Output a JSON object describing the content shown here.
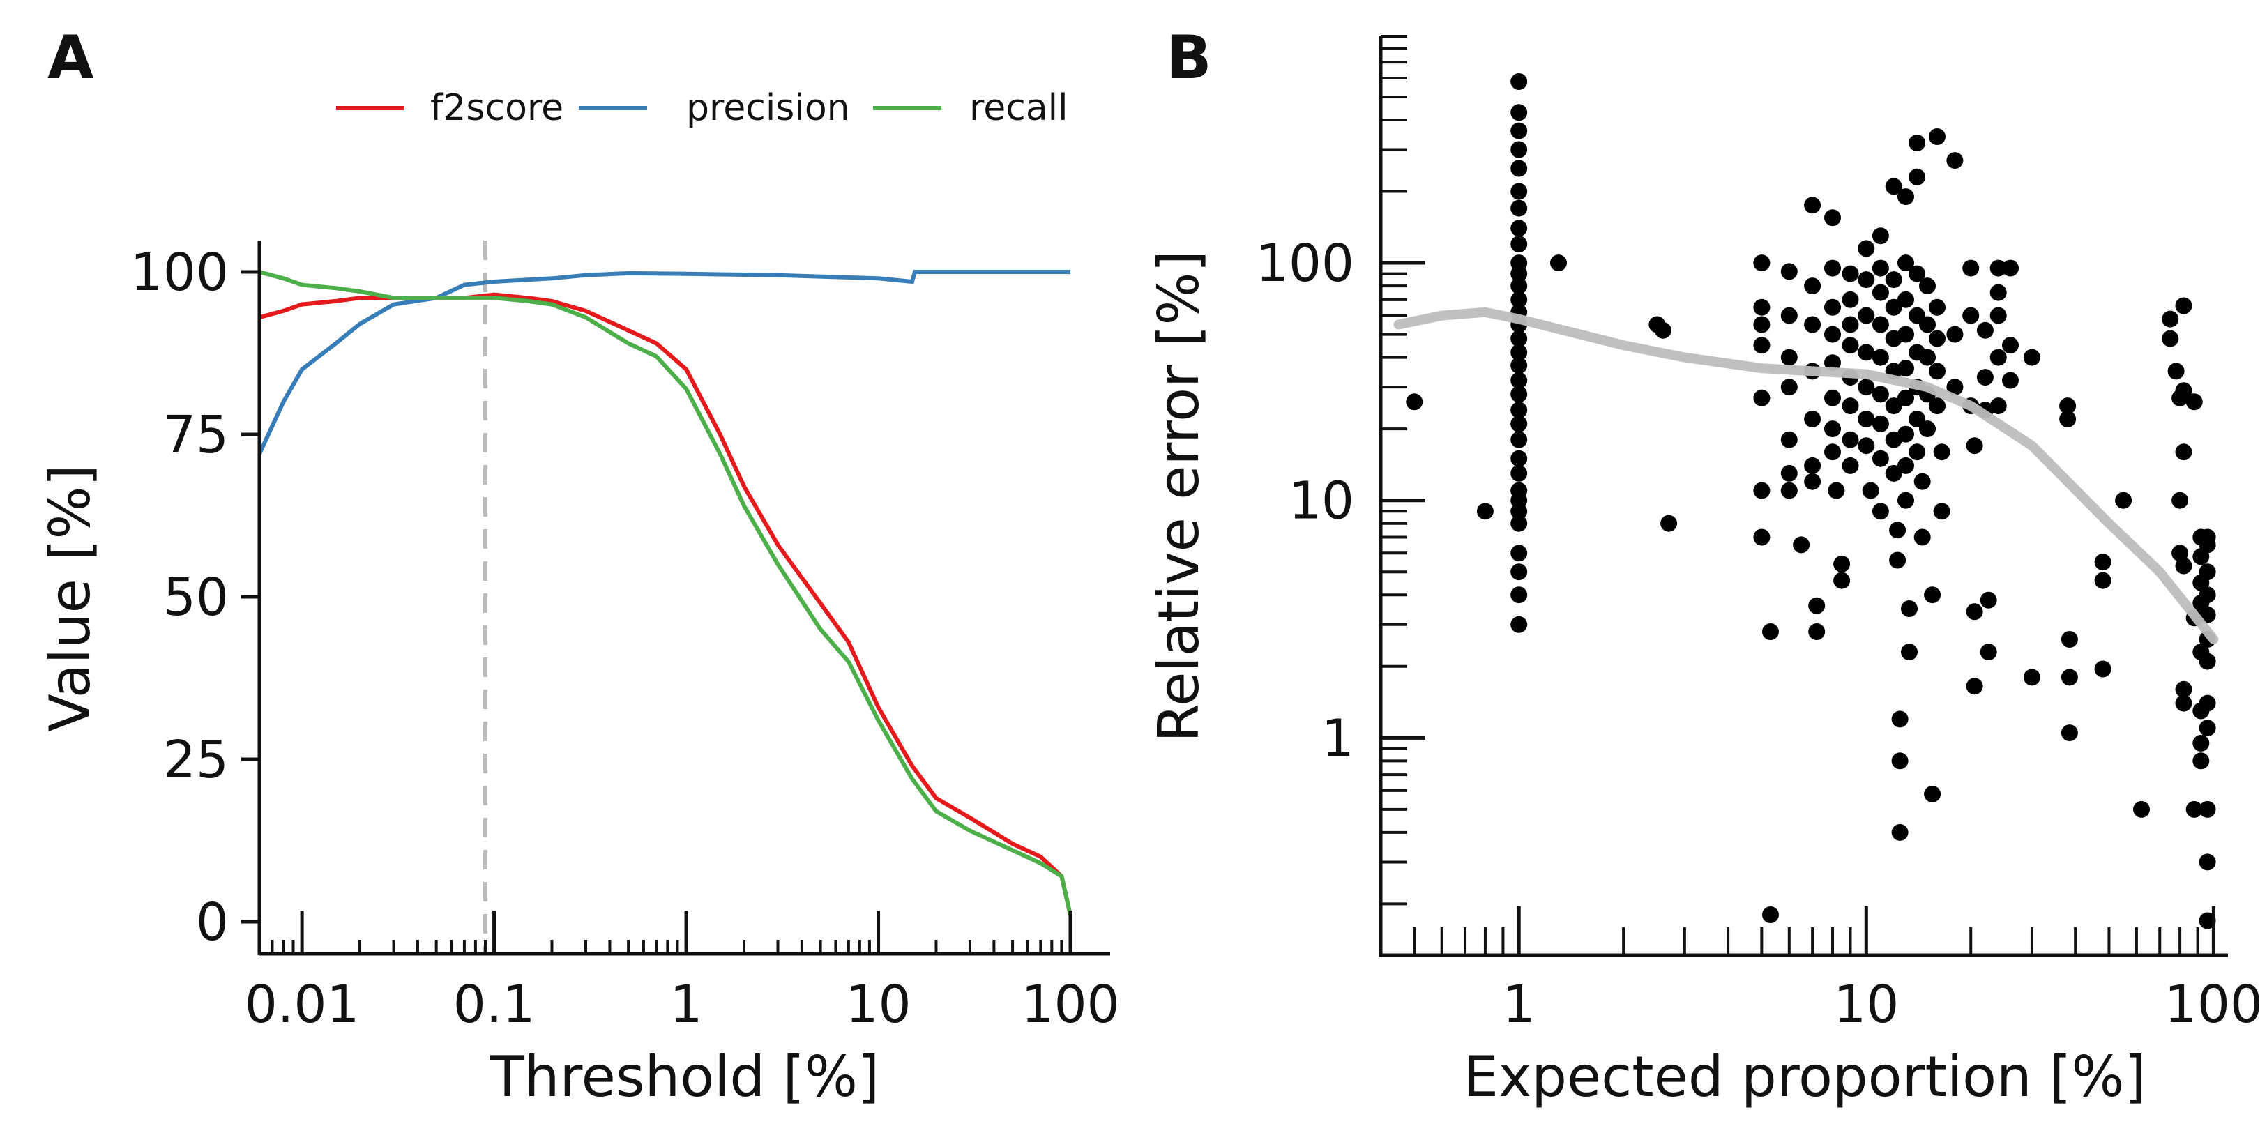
{
  "colors": {
    "f2score": "#e41a1c",
    "precision": "#377eb8",
    "recall": "#4daf4a",
    "threshold_line": "#bbbbbb",
    "trend": "#bdbdbd",
    "points": "#000000",
    "axis": "#111111"
  },
  "chart_data": [
    {
      "panel": "A",
      "type": "line",
      "xscale": "log",
      "xlabel": "Threshold [%]",
      "ylabel": "Value [%]",
      "xlim": [
        0.006,
        100
      ],
      "ylim": [
        -5,
        105
      ],
      "xticks": [
        {
          "value": 0.01,
          "label": "0.01"
        },
        {
          "value": 0.1,
          "label": "0.1"
        },
        {
          "value": 1,
          "label": "1"
        },
        {
          "value": 10,
          "label": "10"
        },
        {
          "value": 100,
          "label": "100"
        }
      ],
      "yticks": [
        {
          "value": 0,
          "label": "0"
        },
        {
          "value": 25,
          "label": "25"
        },
        {
          "value": 50,
          "label": "50"
        },
        {
          "value": 75,
          "label": "75"
        },
        {
          "value": 100,
          "label": "100"
        }
      ],
      "threshold_marker": 0.09,
      "legend": "top",
      "series": [
        {
          "name": "f2score",
          "x": [
            0.006,
            0.008,
            0.01,
            0.015,
            0.02,
            0.03,
            0.05,
            0.07,
            0.1,
            0.15,
            0.2,
            0.3,
            0.5,
            0.7,
            1,
            1.5,
            2,
            3,
            5,
            7,
            10,
            15,
            20,
            30,
            50,
            70,
            90,
            100
          ],
          "y": [
            93,
            94,
            95,
            95.5,
            96,
            96,
            96,
            96,
            96.5,
            96,
            95.5,
            94,
            91,
            89,
            85,
            75,
            67,
            58,
            49,
            43,
            33,
            24,
            19,
            16,
            12,
            10,
            7,
            1
          ]
        },
        {
          "name": "precision",
          "x": [
            0.006,
            0.008,
            0.01,
            0.015,
            0.02,
            0.03,
            0.05,
            0.07,
            0.1,
            0.2,
            0.3,
            0.5,
            1,
            3,
            10,
            15,
            15.5,
            20,
            50,
            100
          ],
          "y": [
            72,
            80,
            85,
            89,
            92,
            95,
            96,
            98,
            98.5,
            99,
            99.5,
            99.8,
            99.7,
            99.5,
            99,
            98.5,
            100,
            100,
            100,
            100
          ]
        },
        {
          "name": "recall",
          "x": [
            0.006,
            0.008,
            0.01,
            0.015,
            0.02,
            0.03,
            0.05,
            0.07,
            0.1,
            0.15,
            0.2,
            0.3,
            0.5,
            0.7,
            1,
            1.5,
            2,
            3,
            5,
            7,
            10,
            15,
            20,
            30,
            50,
            70,
            90,
            100
          ],
          "y": [
            100,
            99,
            98,
            97.5,
            97,
            96,
            96,
            96,
            96,
            95.5,
            95,
            93,
            89,
            87,
            82,
            72,
            64,
            55,
            45,
            40,
            31,
            22,
            17,
            14,
            11,
            9,
            7,
            1
          ]
        }
      ]
    },
    {
      "panel": "B",
      "type": "scatter",
      "xscale": "log",
      "yscale": "log",
      "xlabel": "Expected proportion [%]",
      "ylabel": "Relative error [%]",
      "xlim": [
        0.4,
        110
      ],
      "ylim": [
        0.12,
        900
      ],
      "xticks": [
        {
          "value": 1,
          "label": "1"
        },
        {
          "value": 10,
          "label": "10"
        },
        {
          "value": 100,
          "label": "100"
        }
      ],
      "yticks": [
        {
          "value": 1,
          "label": "1"
        },
        {
          "value": 10,
          "label": "10"
        },
        {
          "value": 100,
          "label": "100"
        }
      ],
      "trend": {
        "x": [
          0.45,
          0.6,
          0.8,
          1,
          1.5,
          2,
          3,
          5,
          7,
          10,
          15,
          20,
          30,
          50,
          70,
          100
        ],
        "y": [
          55,
          60,
          62,
          58,
          50,
          45,
          40,
          36,
          35,
          34,
          30,
          25,
          17,
          8,
          5,
          2.6
        ]
      },
      "points": [
        [
          0.5,
          26
        ],
        [
          0.8,
          9
        ],
        [
          1.3,
          100
        ],
        [
          2.5,
          55
        ],
        [
          2.6,
          52
        ],
        [
          2.7,
          8
        ],
        [
          1,
          580
        ],
        [
          1,
          430
        ],
        [
          1,
          360
        ],
        [
          1,
          300
        ],
        [
          1,
          250
        ],
        [
          1,
          200
        ],
        [
          1,
          170
        ],
        [
          1,
          140
        ],
        [
          1,
          120
        ],
        [
          1,
          100
        ],
        [
          1,
          90
        ],
        [
          1,
          80
        ],
        [
          1,
          70
        ],
        [
          1,
          62
        ],
        [
          1,
          55
        ],
        [
          1,
          48
        ],
        [
          1,
          42
        ],
        [
          1,
          37
        ],
        [
          1,
          32
        ],
        [
          1,
          28
        ],
        [
          1,
          24
        ],
        [
          1,
          21
        ],
        [
          1,
          18
        ],
        [
          1,
          15
        ],
        [
          1,
          13
        ],
        [
          1,
          11
        ],
        [
          1,
          10
        ],
        [
          1,
          9
        ],
        [
          1,
          8
        ],
        [
          1,
          6
        ],
        [
          1,
          5
        ],
        [
          1,
          4
        ],
        [
          1,
          3
        ],
        [
          5,
          100
        ],
        [
          5,
          65
        ],
        [
          5,
          55
        ],
        [
          5,
          45
        ],
        [
          5,
          27
        ],
        [
          5,
          11
        ],
        [
          5,
          7
        ],
        [
          5.3,
          2.8
        ],
        [
          5.3,
          0.18
        ],
        [
          6,
          92
        ],
        [
          6,
          60
        ],
        [
          6,
          40
        ],
        [
          6,
          30
        ],
        [
          6,
          18
        ],
        [
          6,
          13
        ],
        [
          6,
          11
        ],
        [
          6.5,
          6.5
        ],
        [
          7,
          175
        ],
        [
          7,
          80
        ],
        [
          7,
          55
        ],
        [
          7,
          35
        ],
        [
          7,
          22
        ],
        [
          7,
          14
        ],
        [
          7,
          12
        ],
        [
          7.2,
          3.6
        ],
        [
          7.2,
          2.8
        ],
        [
          8,
          155
        ],
        [
          8,
          95
        ],
        [
          8,
          65
        ],
        [
          8,
          50
        ],
        [
          8,
          38
        ],
        [
          8,
          27
        ],
        [
          8,
          20
        ],
        [
          8,
          16
        ],
        [
          8.2,
          11
        ],
        [
          8.5,
          5.4
        ],
        [
          8.5,
          4.6
        ],
        [
          9,
          90
        ],
        [
          9,
          70
        ],
        [
          9,
          55
        ],
        [
          9,
          45
        ],
        [
          9,
          33
        ],
        [
          9,
          25
        ],
        [
          9,
          18
        ],
        [
          9,
          14
        ],
        [
          10,
          115
        ],
        [
          10,
          85
        ],
        [
          10,
          60
        ],
        [
          10,
          42
        ],
        [
          10,
          30
        ],
        [
          10,
          22
        ],
        [
          10,
          17
        ],
        [
          10.3,
          11
        ],
        [
          11,
          130
        ],
        [
          11,
          95
        ],
        [
          11,
          75
        ],
        [
          11,
          55
        ],
        [
          11,
          40
        ],
        [
          11,
          28
        ],
        [
          11,
          21
        ],
        [
          11,
          15
        ],
        [
          11,
          9
        ],
        [
          12,
          210
        ],
        [
          12,
          85
        ],
        [
          12,
          65
        ],
        [
          12,
          48
        ],
        [
          12,
          35
        ],
        [
          12,
          25
        ],
        [
          12,
          18
        ],
        [
          12,
          13
        ],
        [
          12.3,
          7.5
        ],
        [
          12.3,
          5.6
        ],
        [
          12.5,
          1.2
        ],
        [
          12.5,
          0.8
        ],
        [
          12.5,
          0.4
        ],
        [
          13,
          190
        ],
        [
          13,
          100
        ],
        [
          13,
          70
        ],
        [
          13,
          50
        ],
        [
          13,
          36
        ],
        [
          13,
          27
        ],
        [
          13,
          19
        ],
        [
          13,
          14
        ],
        [
          13,
          10
        ],
        [
          13.3,
          3.5
        ],
        [
          13.3,
          2.3
        ],
        [
          14,
          230
        ],
        [
          14,
          320
        ],
        [
          14,
          90
        ],
        [
          14,
          60
        ],
        [
          14,
          42
        ],
        [
          14,
          30
        ],
        [
          14,
          22
        ],
        [
          14,
          16
        ],
        [
          14.5,
          12
        ],
        [
          14.5,
          7
        ],
        [
          15,
          80
        ],
        [
          15,
          55
        ],
        [
          15,
          40
        ],
        [
          15,
          28
        ],
        [
          15,
          20
        ],
        [
          15.5,
          4
        ],
        [
          15.5,
          0.58
        ],
        [
          16,
          340
        ],
        [
          16,
          65
        ],
        [
          16,
          48
        ],
        [
          16,
          35
        ],
        [
          16,
          25
        ],
        [
          16.5,
          16
        ],
        [
          16.5,
          9
        ],
        [
          18,
          270
        ],
        [
          18,
          50
        ],
        [
          18,
          30
        ],
        [
          20,
          95
        ],
        [
          20,
          60
        ],
        [
          20,
          25
        ],
        [
          20.5,
          17
        ],
        [
          20.5,
          3.4
        ],
        [
          20.5,
          1.65
        ],
        [
          22,
          52
        ],
        [
          22,
          33
        ],
        [
          22,
          24
        ],
        [
          22.5,
          3.8
        ],
        [
          22.5,
          2.3
        ],
        [
          24,
          95
        ],
        [
          24,
          75
        ],
        [
          24,
          60
        ],
        [
          24,
          40
        ],
        [
          24,
          25
        ],
        [
          26,
          95
        ],
        [
          26,
          45
        ],
        [
          26,
          32
        ],
        [
          30,
          40
        ],
        [
          30,
          1.8
        ],
        [
          38,
          25
        ],
        [
          38,
          22
        ],
        [
          38.5,
          2.6
        ],
        [
          38.5,
          1.8
        ],
        [
          38.5,
          1.05
        ],
        [
          48,
          5.5
        ],
        [
          48,
          4.6
        ],
        [
          48,
          1.95
        ],
        [
          55,
          10
        ],
        [
          62,
          0.5
        ],
        [
          75,
          58
        ],
        [
          75,
          48
        ],
        [
          78,
          35
        ],
        [
          80,
          27
        ],
        [
          80,
          10
        ],
        [
          80,
          6
        ],
        [
          82,
          66
        ],
        [
          82,
          29
        ],
        [
          82,
          16
        ],
        [
          82,
          5.3
        ],
        [
          82,
          1.6
        ],
        [
          82,
          1.4
        ],
        [
          88,
          26
        ],
        [
          88,
          3.2
        ],
        [
          88,
          0.5
        ],
        [
          92,
          7
        ],
        [
          92,
          5.8
        ],
        [
          92,
          4.5
        ],
        [
          92,
          3.7
        ],
        [
          92,
          2.3
        ],
        [
          92,
          1.3
        ],
        [
          92,
          0.95
        ],
        [
          92,
          0.8
        ],
        [
          96,
          7
        ],
        [
          96,
          6.5
        ],
        [
          96,
          5
        ],
        [
          96,
          4
        ],
        [
          96,
          3.3
        ],
        [
          96,
          2.6
        ],
        [
          96,
          2.1
        ],
        [
          96,
          1.4
        ],
        [
          96,
          1.1
        ],
        [
          96,
          0.5
        ],
        [
          96,
          0.3
        ],
        [
          96,
          0.17
        ]
      ]
    }
  ]
}
